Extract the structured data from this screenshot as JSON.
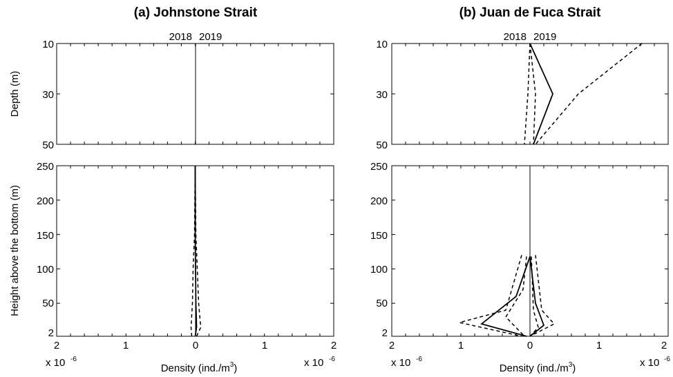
{
  "chart_data": [
    {
      "id": "a",
      "type": "line",
      "title": "(a) Johnstone Strait",
      "year_labels": [
        "2018",
        "2019"
      ],
      "x_tick_labels": [
        "2",
        "1",
        "0",
        "1",
        "2"
      ],
      "x_ticks": [
        -2,
        -1,
        0,
        1,
        2
      ],
      "x_multiplier_left": "x 10",
      "x_multiplier_right": "x 10",
      "x_multiplier_exp": "-6",
      "xlabel": "Density (ind./m",
      "xlabel_sup": "3",
      "xlabel_end": ")",
      "xlim": [
        -2,
        2
      ],
      "top_panel": {
        "ylabel": "Depth (m)",
        "y_tick_labels": [
          "10",
          "30",
          "50"
        ],
        "y_ticks": [
          10,
          30,
          50
        ],
        "ylim": [
          10,
          50
        ],
        "y_inverted": true,
        "lines": []
      },
      "bottom_panel": {
        "ylabel": "Height above the bottom (m)",
        "y_tick_labels": [
          "250",
          "200",
          "150",
          "100",
          "50",
          "2"
        ],
        "y_ticks": [
          250,
          200,
          150,
          100,
          50,
          2
        ],
        "ylim": [
          2,
          250
        ],
        "lines": [
          {
            "style": "solid",
            "points": [
              [
                0.0,
                2
              ],
              [
                0.02,
                15
              ],
              [
                0.01,
                50
              ],
              [
                0.005,
                100
              ],
              [
                0.0,
                150
              ],
              [
                0.0,
                250
              ]
            ]
          },
          {
            "style": "dashed",
            "points": [
              [
                -0.05,
                2
              ],
              [
                -0.06,
                15
              ],
              [
                -0.04,
                50
              ],
              [
                -0.03,
                100
              ],
              [
                -0.01,
                150
              ],
              [
                0.0,
                250
              ]
            ]
          },
          {
            "style": "dashed",
            "points": [
              [
                0.02,
                2
              ],
              [
                0.08,
                15
              ],
              [
                0.05,
                50
              ],
              [
                0.03,
                100
              ],
              [
                0.01,
                150
              ],
              [
                0.0,
                250
              ]
            ]
          }
        ]
      }
    },
    {
      "id": "b",
      "type": "line",
      "title": "(b) Juan de Fuca Strait",
      "year_labels": [
        "2018",
        "2019"
      ],
      "x_tick_labels": [
        "2",
        "1",
        "0",
        "1",
        "2"
      ],
      "x_ticks": [
        -2,
        -1,
        0,
        1,
        2
      ],
      "x_multiplier_left": "x 10",
      "x_multiplier_right": "x 10",
      "x_multiplier_exp": "-6",
      "xlabel": "Density (ind./m",
      "xlabel_sup": "3",
      "xlabel_end": ")",
      "xlim": [
        -2,
        2
      ],
      "top_panel": {
        "ylabel": "",
        "y_tick_labels": [
          "10",
          "30",
          "50"
        ],
        "y_ticks": [
          10,
          30,
          50
        ],
        "ylim": [
          10,
          50
        ],
        "y_inverted": true,
        "lines": [
          {
            "style": "solid",
            "points": [
              [
                0.0,
                10
              ],
              [
                0.33,
                30
              ],
              [
                0.05,
                50
              ]
            ]
          },
          {
            "style": "dashed",
            "points": [
              [
                1.62,
                10
              ],
              [
                0.7,
                30
              ],
              [
                0.08,
                50
              ]
            ]
          },
          {
            "style": "dashed",
            "points": [
              [
                0.0,
                10
              ],
              [
                0.08,
                30
              ],
              [
                0.05,
                50
              ]
            ]
          },
          {
            "style": "dashed",
            "points": [
              [
                0.0,
                10
              ],
              [
                -0.03,
                30
              ],
              [
                -0.08,
                50
              ]
            ]
          }
        ]
      },
      "bottom_panel": {
        "ylabel": "",
        "y_tick_labels": [
          "250",
          "200",
          "150",
          "100",
          "50",
          "2"
        ],
        "y_ticks": [
          250,
          200,
          150,
          100,
          50,
          2
        ],
        "ylim": [
          2,
          250
        ],
        "lines": [
          {
            "style": "solid",
            "points": [
              [
                0.0,
                118
              ],
              [
                -0.2,
                60
              ],
              [
                -0.7,
                20
              ],
              [
                -0.05,
                2
              ]
            ]
          },
          {
            "style": "dashed",
            "points": [
              [
                -0.12,
                120
              ],
              [
                -0.35,
                40
              ],
              [
                -1.02,
                22
              ],
              [
                -0.12,
                2
              ]
            ]
          },
          {
            "style": "dashed",
            "points": [
              [
                -0.05,
                118
              ],
              [
                -0.1,
                70
              ],
              [
                -0.35,
                30
              ],
              [
                -0.08,
                2
              ]
            ]
          },
          {
            "style": "solid",
            "points": [
              [
                0.0,
                118
              ],
              [
                0.08,
                50
              ],
              [
                0.2,
                18
              ],
              [
                0.0,
                2
              ]
            ]
          },
          {
            "style": "dashed",
            "points": [
              [
                0.08,
                120
              ],
              [
                0.17,
                40
              ],
              [
                0.35,
                20
              ],
              [
                0.0,
                2
              ]
            ]
          },
          {
            "style": "dashed",
            "points": [
              [
                0.02,
                118
              ],
              [
                0.05,
                40
              ],
              [
                0.12,
                15
              ],
              [
                0.0,
                2
              ]
            ]
          }
        ]
      }
    }
  ]
}
